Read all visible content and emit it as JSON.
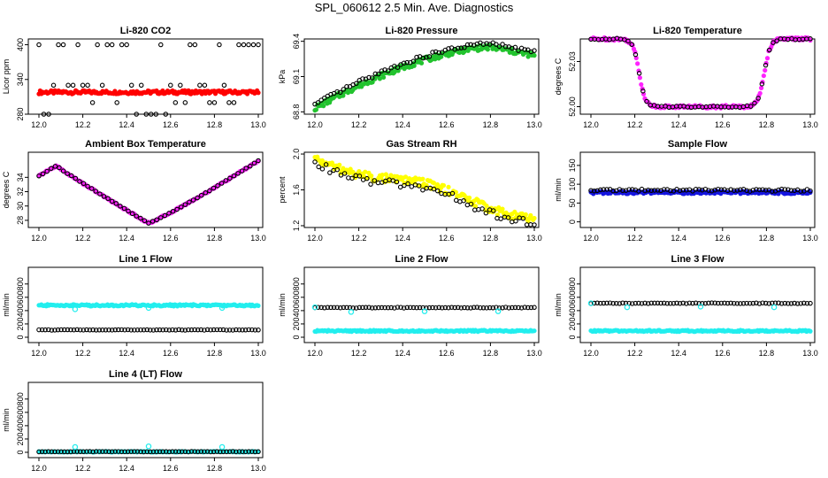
{
  "page_title": "SPL_060612  2.5 Min. Ave. Diagnostics",
  "colors": {
    "red": "#ff0000",
    "green": "#22c32e",
    "magenta": "#ff22ff",
    "yellow": "#ffff00",
    "blue": "#1515e0",
    "cyan": "#22eeee",
    "black": "#000000"
  },
  "chart_data": [
    {
      "id": "co2",
      "type": "scatter",
      "title": "Li-820 CO2",
      "ylabel": "Licor ppm",
      "xlim": [
        12.0,
        13.0
      ],
      "ylim": [
        280,
        410
      ],
      "x_ticks": [
        "12.0",
        "12.2",
        "12.4",
        "12.6",
        "12.8",
        "13.0"
      ],
      "y_ticks": [
        {
          "v": 280,
          "label": "280"
        },
        {
          "v": 340,
          "label": "340"
        },
        {
          "v": 400,
          "label": "400"
        }
      ],
      "series": [
        {
          "name": "band",
          "color": "red",
          "kind": "band",
          "shape": "flat",
          "base": 318,
          "amp": 1,
          "width": 6
        },
        {
          "name": "points",
          "color": "black",
          "kind": "levels",
          "levels": [
            280,
            300,
            330,
            400
          ],
          "n": 46
        }
      ]
    },
    {
      "id": "pressure",
      "type": "scatter",
      "title": "Li-820 Pressure",
      "ylabel": "kPa",
      "xlim": [
        12.0,
        13.0
      ],
      "ylim": [
        68.78,
        69.42
      ],
      "x_ticks": [
        "12.0",
        "12.2",
        "12.4",
        "12.6",
        "12.8",
        "13.0"
      ],
      "y_ticks": [
        {
          "v": 68.8,
          "label": "68.8"
        },
        {
          "v": 69.1,
          "label": "69.1"
        },
        {
          "v": 69.4,
          "label": "69.4"
        }
      ],
      "series": [
        {
          "name": "band",
          "color": "green",
          "kind": "band",
          "shape": "pressure",
          "base": 0,
          "amp": 1,
          "width": 0.045
        },
        {
          "name": "points",
          "color": "black",
          "kind": "follow",
          "shape": "pressure",
          "base": 0,
          "amp": 1,
          "offset": 0.03,
          "jitter": 0.015,
          "n": 70
        }
      ]
    },
    {
      "id": "temp820",
      "type": "scatter",
      "title": "Li-820 Temperature",
      "ylabel": "degrees C",
      "xlim": [
        12.0,
        13.0
      ],
      "ylim": [
        51.995,
        52.045
      ],
      "x_ticks": [
        "12.0",
        "12.2",
        "12.4",
        "12.6",
        "12.8",
        "13.0"
      ],
      "y_ticks": [
        {
          "v": 52.0,
          "label": "52.00"
        },
        {
          "v": 52.03,
          "label": "52.03"
        }
      ],
      "series": [
        {
          "name": "band",
          "color": "magenta",
          "kind": "band",
          "shape": "well",
          "base": 52.0,
          "amp": 0.045,
          "width": 0.002
        },
        {
          "name": "points",
          "color": "black",
          "kind": "follow",
          "shape": "well",
          "base": 52.0,
          "amp": 0.045,
          "offset": 0,
          "jitter": 0.0005,
          "n": 60
        }
      ]
    },
    {
      "id": "boxtemp",
      "type": "scatter",
      "title": "Ambient Box Temperature",
      "ylabel": "degrees C",
      "xlim": [
        12.0,
        13.0
      ],
      "ylim": [
        27,
        37.5
      ],
      "x_ticks": [
        "12.0",
        "12.2",
        "12.4",
        "12.6",
        "12.8",
        "13.0"
      ],
      "y_ticks": [
        {
          "v": 28,
          "label": "28"
        },
        {
          "v": 30,
          "label": "30"
        },
        {
          "v": 32,
          "label": "32"
        },
        {
          "v": 34,
          "label": "34"
        }
      ],
      "series": [
        {
          "name": "band",
          "color": "magenta",
          "kind": "band",
          "shape": "box",
          "base": 0,
          "amp": 1,
          "width": 0.25
        },
        {
          "name": "points",
          "color": "black",
          "kind": "follow",
          "shape": "box",
          "base": 0,
          "amp": 1,
          "offset": 0,
          "jitter": 0.05,
          "n": 55
        }
      ]
    },
    {
      "id": "rh",
      "type": "scatter",
      "title": "Gas Stream RH",
      "ylabel": "percent",
      "xlim": [
        12.0,
        13.0
      ],
      "ylim": [
        1.18,
        2.02
      ],
      "x_ticks": [
        "12.0",
        "12.2",
        "12.4",
        "12.6",
        "12.8",
        "13.0"
      ],
      "y_ticks": [
        {
          "v": 1.2,
          "label": "1.2"
        },
        {
          "v": 1.6,
          "label": "1.6"
        },
        {
          "v": 2.0,
          "label": "2.0"
        }
      ],
      "series": [
        {
          "name": "band",
          "color": "yellow",
          "kind": "band",
          "shape": "rh",
          "base": 0,
          "amp": 1,
          "width": 0.09
        },
        {
          "name": "points",
          "color": "black",
          "kind": "follow",
          "shape": "rh",
          "base": 0,
          "amp": 1,
          "offset": -0.05,
          "jitter": 0.04,
          "n": 60
        }
      ]
    },
    {
      "id": "sampleflow",
      "type": "scatter",
      "title": "Sample Flow",
      "ylabel": "ml/min",
      "xlim": [
        12.0,
        13.0
      ],
      "ylim": [
        -15,
        185
      ],
      "x_ticks": [
        "12.0",
        "12.2",
        "12.4",
        "12.6",
        "12.8",
        "13.0"
      ],
      "y_ticks": [
        {
          "v": 0,
          "label": "0"
        },
        {
          "v": 50,
          "label": "50"
        },
        {
          "v": 100,
          "label": "100"
        },
        {
          "v": 150,
          "label": "150"
        }
      ],
      "series": [
        {
          "name": "band",
          "color": "blue",
          "kind": "band",
          "shape": "flat",
          "base": 78,
          "amp": 1,
          "width": 7
        },
        {
          "name": "points",
          "color": "black",
          "kind": "follow",
          "shape": "flat",
          "base": 84,
          "amp": 1,
          "offset": 0,
          "jitter": 3,
          "n": 70
        }
      ]
    },
    {
      "id": "line1",
      "type": "scatter",
      "title": "Line 1 Flow",
      "ylabel": "ml/min",
      "xlim": [
        12.0,
        13.0
      ],
      "ylim": [
        -80,
        1050
      ],
      "x_ticks": [
        "12.0",
        "12.2",
        "12.4",
        "12.6",
        "12.8",
        "13.0"
      ],
      "y_ticks": [
        {
          "v": 0,
          "label": "0"
        },
        {
          "v": 200,
          "label": "200"
        },
        {
          "v": 400,
          "label": "400"
        },
        {
          "v": 600,
          "label": "600"
        },
        {
          "v": 800,
          "label": "800"
        }
      ],
      "series": [
        {
          "name": "band",
          "color": "cyan",
          "kind": "band",
          "shape": "flat",
          "base": 480,
          "amp": 1,
          "width": 28
        },
        {
          "name": "points",
          "color": "black",
          "kind": "follow",
          "shape": "flat",
          "base": 110,
          "amp": 1,
          "offset": 0,
          "jitter": 4,
          "n": 70
        },
        {
          "name": "dips",
          "color": "cyan",
          "kind": "points",
          "x": [
            12.165,
            12.5,
            12.835
          ],
          "y": [
            420,
            440,
            440
          ]
        }
      ]
    },
    {
      "id": "line2",
      "type": "scatter",
      "title": "Line 2 Flow",
      "ylabel": "ml/min",
      "xlim": [
        12.0,
        13.0
      ],
      "ylim": [
        -80,
        1050
      ],
      "x_ticks": [
        "12.0",
        "12.2",
        "12.4",
        "12.6",
        "12.8",
        "13.0"
      ],
      "y_ticks": [
        {
          "v": 0,
          "label": "0"
        },
        {
          "v": 200,
          "label": "200"
        },
        {
          "v": 400,
          "label": "400"
        },
        {
          "v": 600,
          "label": "600"
        },
        {
          "v": 800,
          "label": "800"
        }
      ],
      "series": [
        {
          "name": "band",
          "color": "cyan",
          "kind": "band",
          "shape": "flat",
          "base": 95,
          "amp": 1,
          "width": 22
        },
        {
          "name": "points",
          "color": "black",
          "kind": "follow",
          "shape": "flat",
          "base": 445,
          "amp": 1,
          "offset": 0,
          "jitter": 6,
          "n": 70
        },
        {
          "name": "dips",
          "color": "cyan",
          "kind": "points",
          "x": [
            12.0,
            12.165,
            12.5,
            12.835
          ],
          "y": [
            450,
            380,
            390,
            390
          ]
        }
      ]
    },
    {
      "id": "line3",
      "type": "scatter",
      "title": "Line 3 Flow",
      "ylabel": "ml/min",
      "xlim": [
        12.0,
        13.0
      ],
      "ylim": [
        -80,
        1050
      ],
      "x_ticks": [
        "12.0",
        "12.2",
        "12.4",
        "12.6",
        "12.8",
        "13.0"
      ],
      "y_ticks": [
        {
          "v": 0,
          "label": "0"
        },
        {
          "v": 200,
          "label": "200"
        },
        {
          "v": 400,
          "label": "400"
        },
        {
          "v": 600,
          "label": "600"
        },
        {
          "v": 800,
          "label": "800"
        }
      ],
      "series": [
        {
          "name": "band",
          "color": "cyan",
          "kind": "band",
          "shape": "flat",
          "base": 95,
          "amp": 1,
          "width": 22
        },
        {
          "name": "points",
          "color": "black",
          "kind": "follow",
          "shape": "flat",
          "base": 510,
          "amp": 1,
          "offset": 0,
          "jitter": 6,
          "n": 70
        },
        {
          "name": "dips",
          "color": "cyan",
          "kind": "points",
          "x": [
            12.0,
            12.165,
            12.5,
            12.835
          ],
          "y": [
            510,
            450,
            460,
            450
          ]
        }
      ]
    },
    {
      "id": "line4",
      "type": "scatter",
      "title": "Line 4 (LT) Flow",
      "ylabel": "ml/min",
      "xlim": [
        12.0,
        13.0
      ],
      "ylim": [
        -80,
        1050
      ],
      "x_ticks": [
        "12.0",
        "12.2",
        "12.4",
        "12.6",
        "12.8",
        "13.0"
      ],
      "y_ticks": [
        {
          "v": 0,
          "label": "0"
        },
        {
          "v": 200,
          "label": "200"
        },
        {
          "v": 400,
          "label": "400"
        },
        {
          "v": 600,
          "label": "600"
        },
        {
          "v": 800,
          "label": "800"
        }
      ],
      "series": [
        {
          "name": "band",
          "color": "cyan",
          "kind": "band",
          "shape": "flat",
          "base": 8,
          "amp": 1,
          "width": 14
        },
        {
          "name": "points",
          "color": "black",
          "kind": "follow",
          "shape": "flat",
          "base": 10,
          "amp": 1,
          "offset": 0,
          "jitter": 3,
          "n": 70
        },
        {
          "name": "spikes",
          "color": "cyan",
          "kind": "points",
          "x": [
            12.165,
            12.5,
            12.835
          ],
          "y": [
            80,
            90,
            80
          ]
        }
      ]
    }
  ]
}
